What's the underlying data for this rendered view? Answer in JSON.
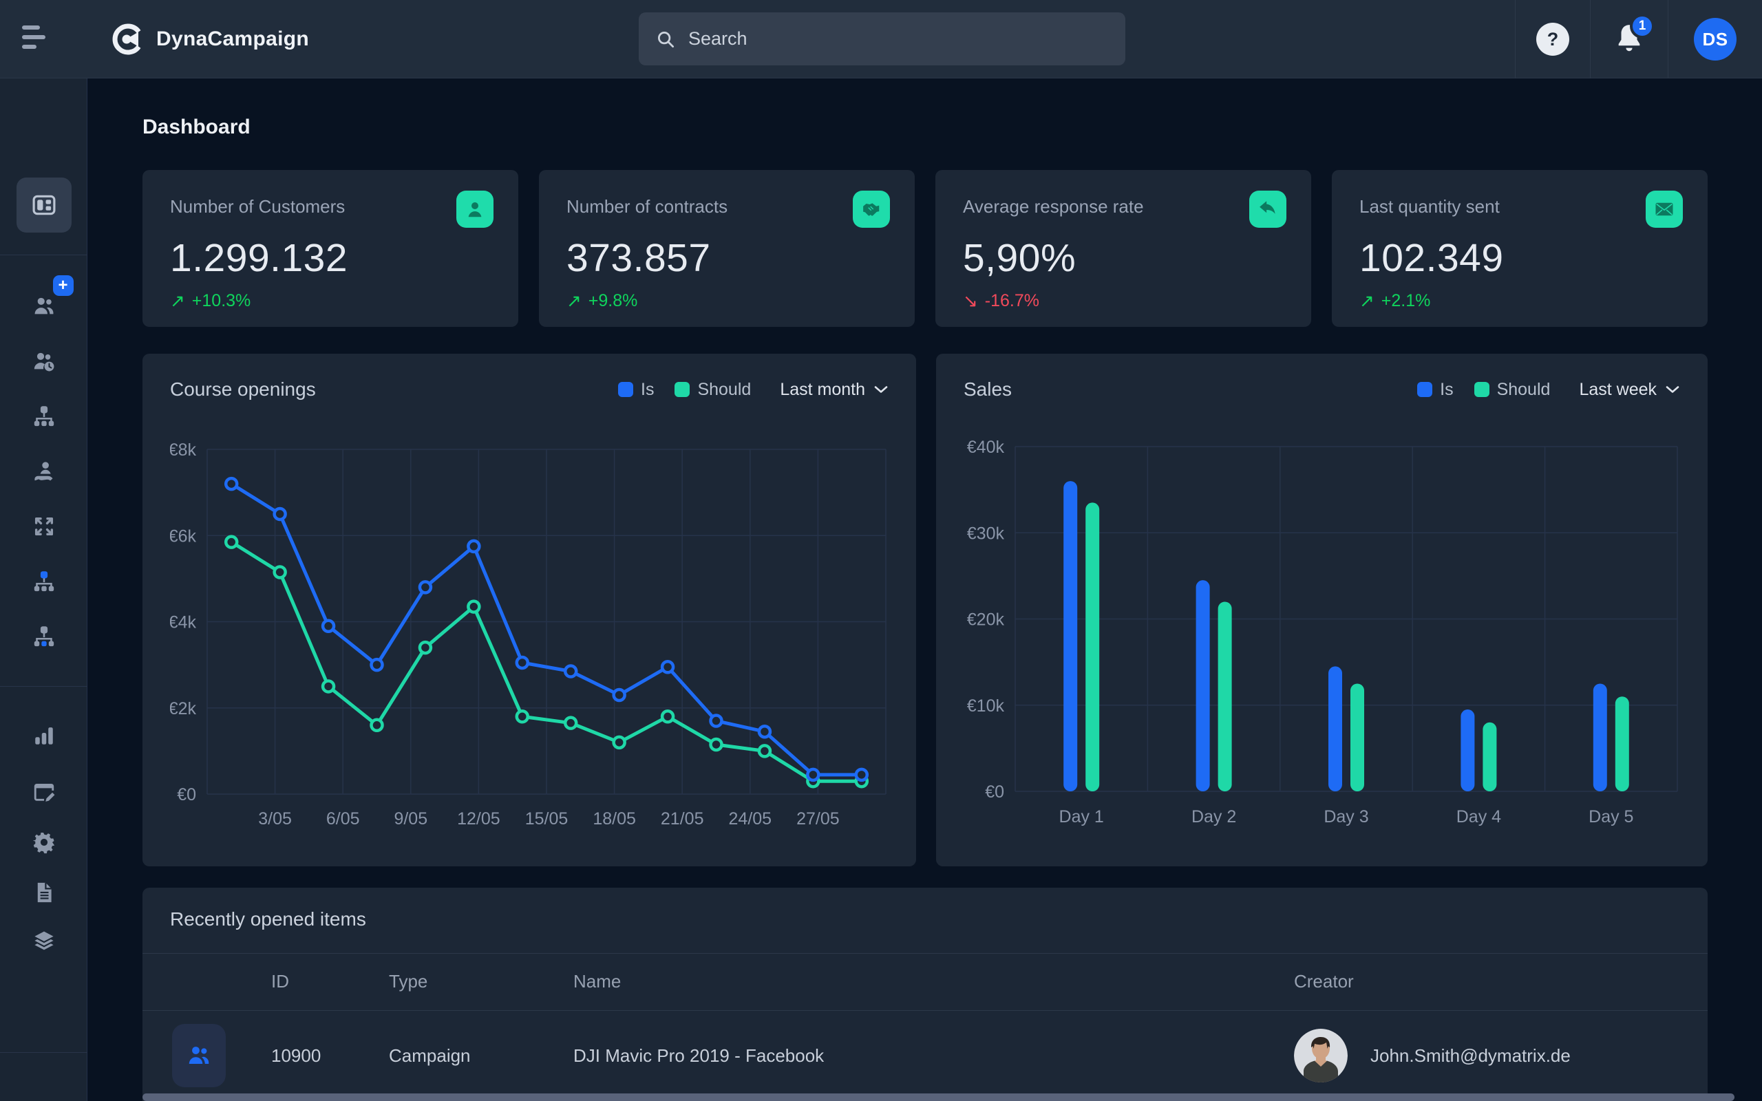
{
  "topbar": {
    "brand": "DynaCampaign",
    "search_placeholder": "Search",
    "help_label": "?",
    "notification_count": "1",
    "avatar_initials": "DS"
  },
  "sidebar": {
    "items": [
      {
        "name": "dashboard",
        "active": true
      },
      {
        "name": "add-customer",
        "badge": "+"
      },
      {
        "name": "customer-history"
      },
      {
        "name": "hierarchy"
      },
      {
        "name": "customer-care"
      },
      {
        "name": "expand"
      },
      {
        "name": "hierarchy-root"
      },
      {
        "name": "hierarchy-sub"
      },
      {
        "name": "statistics"
      },
      {
        "name": "page-editor"
      },
      {
        "name": "settings"
      },
      {
        "name": "documents"
      },
      {
        "name": "layers"
      },
      {
        "name": "account-settings"
      }
    ]
  },
  "page": {
    "title": "Dashboard"
  },
  "stats": [
    {
      "label": "Number of Customers",
      "value": "1.299.132",
      "delta": "+10.3%",
      "arrow": "↗",
      "trend": "up",
      "icon": "user-icon"
    },
    {
      "label": "Number of contracts",
      "value": "373.857",
      "delta": "+9.8%",
      "arrow": "↗",
      "trend": "up",
      "icon": "handshake-icon"
    },
    {
      "label": "Average response rate",
      "value": "5,90%",
      "delta": "-16.7%",
      "arrow": "↘",
      "trend": "down",
      "icon": "reply-icon"
    },
    {
      "label": "Last quantity sent",
      "value": "102.349",
      "delta": "+2.1%",
      "arrow": "↗",
      "trend": "up",
      "icon": "envelope-icon"
    }
  ],
  "chart_data": [
    {
      "id": "course-openings",
      "type": "line",
      "title": "Course openings",
      "range_label": "Last month",
      "legend_position": "top-right",
      "grid": true,
      "ylim_eur_k": [
        0,
        8
      ],
      "y_tick_labels": [
        "€0",
        "€2k",
        "€4k",
        "€6k",
        "€8k"
      ],
      "x_tick_labels": [
        "3/05",
        "6/05",
        "9/05",
        "12/05",
        "15/05",
        "18/05",
        "21/05",
        "24/05",
        "27/05"
      ],
      "series": [
        {
          "name": "Is",
          "color_key": "blue",
          "values_eur_k": [
            7.2,
            6.5,
            3.9,
            3.0,
            4.8,
            5.75,
            3.05,
            2.85,
            2.3,
            2.95,
            1.7,
            1.45,
            0.45,
            0.45
          ]
        },
        {
          "name": "Should",
          "color_key": "teal",
          "values_eur_k": [
            5.85,
            5.15,
            2.5,
            1.6,
            3.4,
            4.35,
            1.8,
            1.65,
            1.2,
            1.8,
            1.15,
            1.0,
            0.3,
            0.3
          ]
        }
      ]
    },
    {
      "id": "sales",
      "type": "bar",
      "title": "Sales",
      "range_label": "Last week",
      "legend_position": "top-right",
      "grid": true,
      "ylim_eur_k": [
        0,
        40
      ],
      "y_tick_labels": [
        "€0",
        "€10k",
        "€20k",
        "€30k",
        "€40k"
      ],
      "categories": [
        "Day 1",
        "Day 2",
        "Day 3",
        "Day 4",
        "Day 5"
      ],
      "series": [
        {
          "name": "Is",
          "color_key": "blue",
          "values_eur_k": [
            36,
            24.5,
            14.5,
            9.5,
            12.5
          ]
        },
        {
          "name": "Should",
          "color_key": "teal",
          "values_eur_k": [
            33.5,
            22,
            12.5,
            8,
            11
          ]
        }
      ]
    }
  ],
  "table": {
    "title": "Recently opened items",
    "columns": [
      "ID",
      "Type",
      "Name",
      "Creator"
    ],
    "rows": [
      {
        "id": "10900",
        "type": "Campaign",
        "name": "DJI Mavic Pro 2019 - Facebook",
        "creator": "John.Smith@dymatrix.de",
        "row_icon": "users-icon",
        "creator_avatar": "photo-avatar"
      }
    ]
  },
  "colors": {
    "accent_blue": "#1e6bf5",
    "accent_teal": "#1fd8a7",
    "positive_green": "#0fd45c",
    "negative_red": "#f24a5b",
    "card_bg": "#1c2736",
    "page_bg": "#081221",
    "topbar_bg": "#212d3c",
    "sidebar_bg": "#1a2533"
  }
}
